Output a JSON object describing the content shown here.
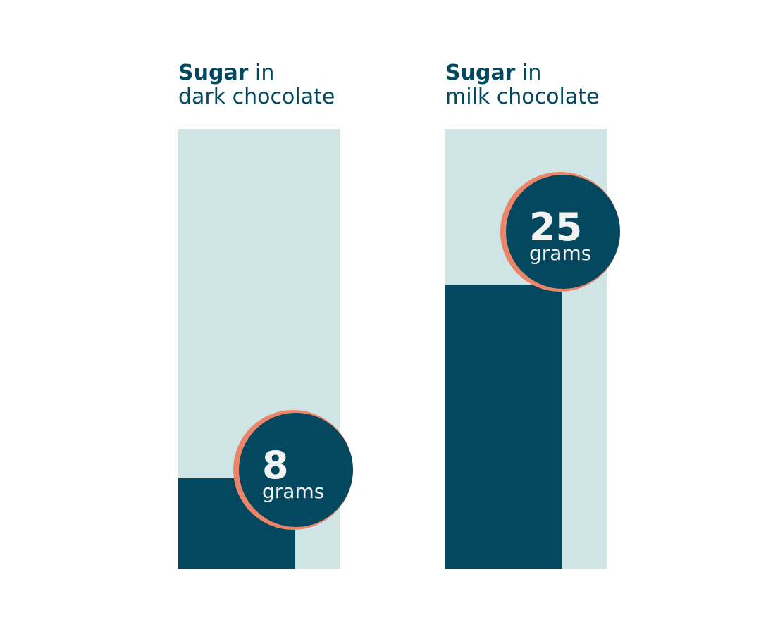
{
  "chart_data": {
    "type": "bar",
    "categories": [
      "dark chocolate",
      "milk chocolate"
    ],
    "values": [
      8,
      25
    ],
    "unit": "grams",
    "ylim": [
      0,
      38.7
    ],
    "legend": "none",
    "grid": false,
    "panels": [
      {
        "title_bold": "Sugar",
        "title_rest": "in",
        "title_line2": "dark chocolate",
        "value_label": "8",
        "unit_label": "grams"
      },
      {
        "title_bold": "Sugar",
        "title_rest": "in",
        "title_line2": "milk chocolate",
        "value_label": "25",
        "unit_label": "grams"
      }
    ]
  },
  "colors": {
    "track": "#cfe4e5",
    "bar": "#03485f",
    "badge": "#03485f",
    "badge_ring": "#ec8467",
    "text": "#03485f",
    "badge_text": "#f2f2f2"
  }
}
